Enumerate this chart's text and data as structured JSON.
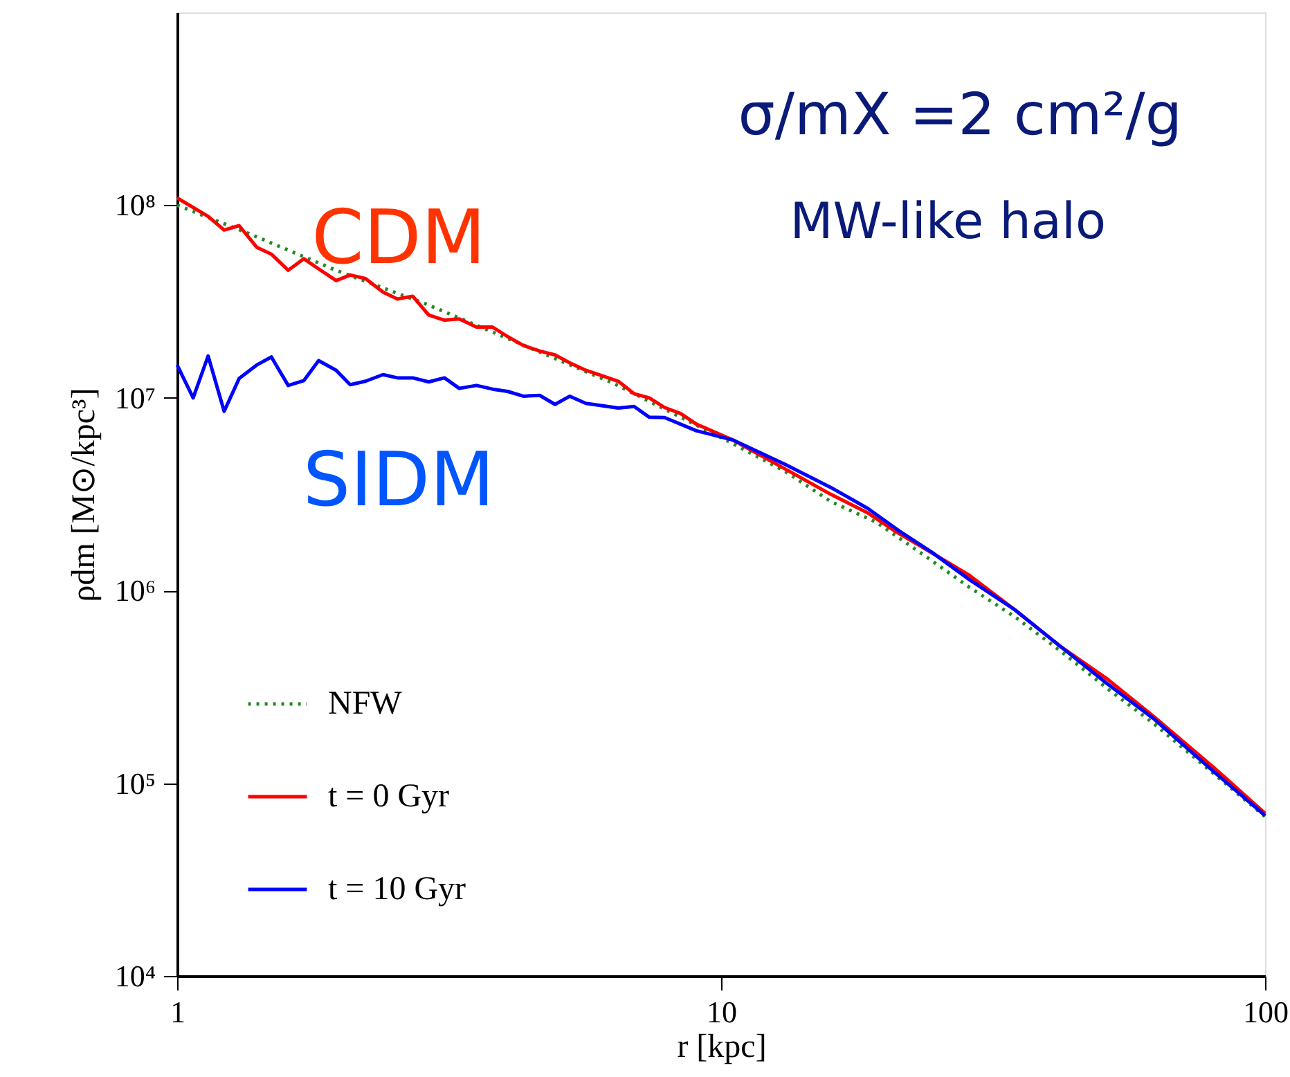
{
  "chart_data": {
    "type": "line",
    "xlabel": "r [kpc]",
    "ylabel": "ρdm [M⊙/kpc³]",
    "log": "xy",
    "xlim": [
      1,
      100
    ],
    "xticks": [
      1,
      10,
      100
    ],
    "ylim": [
      10000,
      1000000000
    ],
    "yticks": [
      {
        "value": 10000,
        "label": "10⁴"
      },
      {
        "value": 100000,
        "label": "10⁵"
      },
      {
        "value": 1000000,
        "label": "10⁶"
      },
      {
        "value": 10000000,
        "label": "10⁷"
      },
      {
        "value": 100000000,
        "label": "10⁸"
      }
    ],
    "grid": false,
    "legend": "bottom left",
    "annotations": [
      "σ/mX =2 cm²/g",
      "MW-like halo",
      "CDM",
      "SIDM"
    ],
    "series": [
      {
        "name": "NFW",
        "color": "#228b22",
        "line_style": "dotted",
        "x": [
          1.0,
          1.37,
          1.96,
          2.9,
          4.29,
          6.34,
          10.3,
          13.1,
          15.9,
          19.3,
          23.5,
          28.6,
          34.7,
          42.2,
          51.3,
          62.3,
          100
        ],
        "values": [
          100000000.0,
          70300000.0,
          45900000.0,
          30300000.0,
          19000000.0,
          11900000.0,
          5960000.0,
          4160000.0,
          2900000.0,
          2260000.0,
          1540000.0,
          1040000.0,
          730000.0,
          482000.0,
          310000.0,
          205000.0,
          67100.0
        ]
      },
      {
        "name": "t = 0 Gyr",
        "color": "#ff0000",
        "line_style": "solid",
        "x": [
          1.0,
          1.14,
          1.22,
          1.3,
          1.4,
          1.49,
          1.6,
          1.71,
          1.82,
          1.96,
          2.08,
          2.22,
          2.39,
          2.54,
          2.71,
          2.9,
          3.1,
          3.3,
          3.55,
          3.8,
          4.05,
          4.33,
          4.64,
          4.95,
          5.27,
          5.64,
          6.47,
          6.92,
          7.38,
          7.87,
          8.42,
          9.01,
          10.5,
          13.1,
          15.9,
          18.6,
          20.9,
          23.5,
          28.6,
          34.7,
          42.2,
          51.3,
          62.3,
          80.4,
          100
        ],
        "values": [
          109000000.0,
          87500000.0,
          74300000.0,
          78300000.0,
          60500000.0,
          55700000.0,
          45900000.0,
          52700000.0,
          46700000.0,
          40600000.0,
          43400000.0,
          41600000.0,
          35400000.0,
          32600000.0,
          33700000.0,
          26900000.0,
          25300000.0,
          25700000.0,
          23300000.0,
          23300000.0,
          20800000.0,
          18700000.0,
          17500000.0,
          16700000.0,
          15200000.0,
          13900000.0,
          12200000.0,
          10500000.0,
          10000000.0,
          8910000.0,
          8300000.0,
          7300000.0,
          6050000.0,
          4280000.0,
          3160000.0,
          2530000.0,
          2030000.0,
          1670000.0,
          1200000.0,
          793000.0,
          509000.0,
          347000.0,
          223000.0,
          121000.0,
          69800.0
        ]
      },
      {
        "name": "t = 10 Gyr",
        "color": "#0000ff",
        "line_style": "solid",
        "x": [
          1.0,
          1.07,
          1.14,
          1.22,
          1.3,
          1.4,
          1.49,
          1.6,
          1.71,
          1.82,
          1.96,
          2.08,
          2.22,
          2.39,
          2.54,
          2.71,
          2.9,
          3.1,
          3.3,
          3.55,
          3.8,
          4.05,
          4.33,
          4.64,
          4.95,
          5.27,
          5.64,
          6.47,
          6.92,
          7.38,
          7.87,
          9.01,
          10.5,
          13.1,
          15.9,
          18.6,
          21.3,
          24.4,
          28.6,
          34.7,
          42.2,
          51.3,
          62.3,
          80.4,
          100
        ],
        "values": [
          14800000.0,
          10000000.0,
          16500000.0,
          8510000.0,
          12600000.0,
          14800000.0,
          16300000.0,
          11600000.0,
          12300000.0,
          15600000.0,
          13900000.0,
          11700000.0,
          12200000.0,
          13200000.0,
          12700000.0,
          12700000.0,
          12100000.0,
          12700000.0,
          11200000.0,
          11600000.0,
          11100000.0,
          10800000.0,
          10200000.0,
          10300000.0,
          9250000.0,
          10200000.0,
          9360000.0,
          8850000.0,
          9020000.0,
          7930000.0,
          7900000.0,
          6750000.0,
          6050000.0,
          4520000.0,
          3430000.0,
          2670000.0,
          2030000.0,
          1580000.0,
          1140000.0,
          793000.0,
          509000.0,
          328000.0,
          217000.0,
          115000.0,
          68000.0
        ]
      }
    ]
  }
}
